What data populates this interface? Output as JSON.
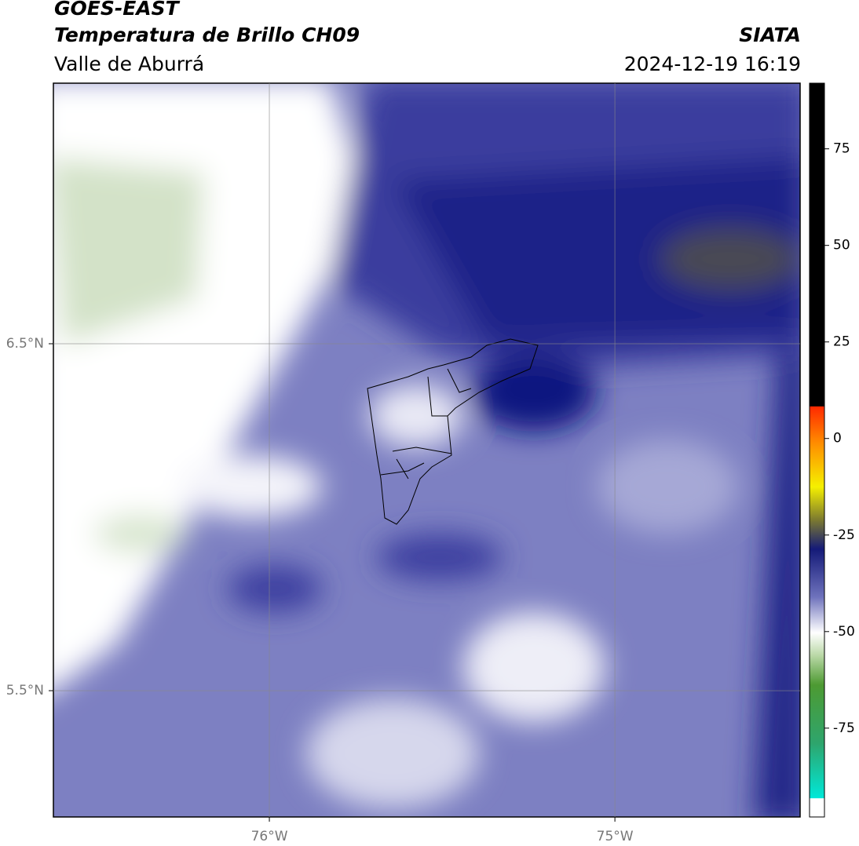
{
  "header": {
    "title": "GOES-EAST",
    "subtitle": "Temperatura de Brillo CH09",
    "region": "Valle de Aburrá",
    "source": "SIATA",
    "datetime": "2024-12-19 16:19"
  },
  "map": {
    "lonlim": [
      -76.625,
      -74.464
    ],
    "latlim": [
      5.136,
      7.251
    ],
    "lat_ticks": [
      {
        "value": 6.5,
        "label": "6.5°N"
      },
      {
        "value": 5.5,
        "label": "5.5°N"
      }
    ],
    "lon_ticks": [
      {
        "value": -76,
        "label": "76°W"
      },
      {
        "value": -75,
        "label": "75°W"
      }
    ]
  },
  "colorbar": {
    "lim": [
      -98,
      92
    ],
    "ticks": [
      75,
      50,
      25,
      0,
      -25,
      -50,
      -75
    ]
  }
}
